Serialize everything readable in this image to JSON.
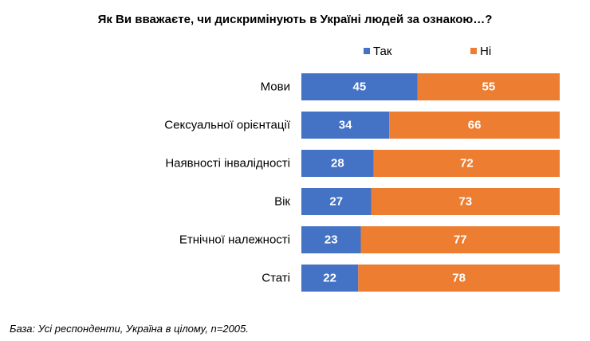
{
  "chart_data": {
    "type": "bar",
    "orientation": "horizontal",
    "stacked": true,
    "percent_stacked": true,
    "title": "Як Ви вважаєте, чи дискримінують в Україні людей за ознакою…?",
    "categories": [
      "Мови",
      "Сексуальної орієнтації",
      "Наявності інвалідності",
      "Вік",
      "Етнічної належності",
      "Статі"
    ],
    "series": [
      {
        "name": "Так",
        "values": [
          45,
          34,
          28,
          27,
          23,
          22
        ],
        "color": "#4472C4"
      },
      {
        "name": "Ні",
        "values": [
          55,
          66,
          72,
          73,
          77,
          78
        ],
        "color": "#ED7D31"
      }
    ],
    "xlim": [
      0,
      100
    ],
    "grid": false,
    "legend_position": "top",
    "data_labels": true,
    "data_label_color": "#FFFFFF"
  },
  "footnote": "База: Усі респонденти, Україна в цілому, n=2005."
}
